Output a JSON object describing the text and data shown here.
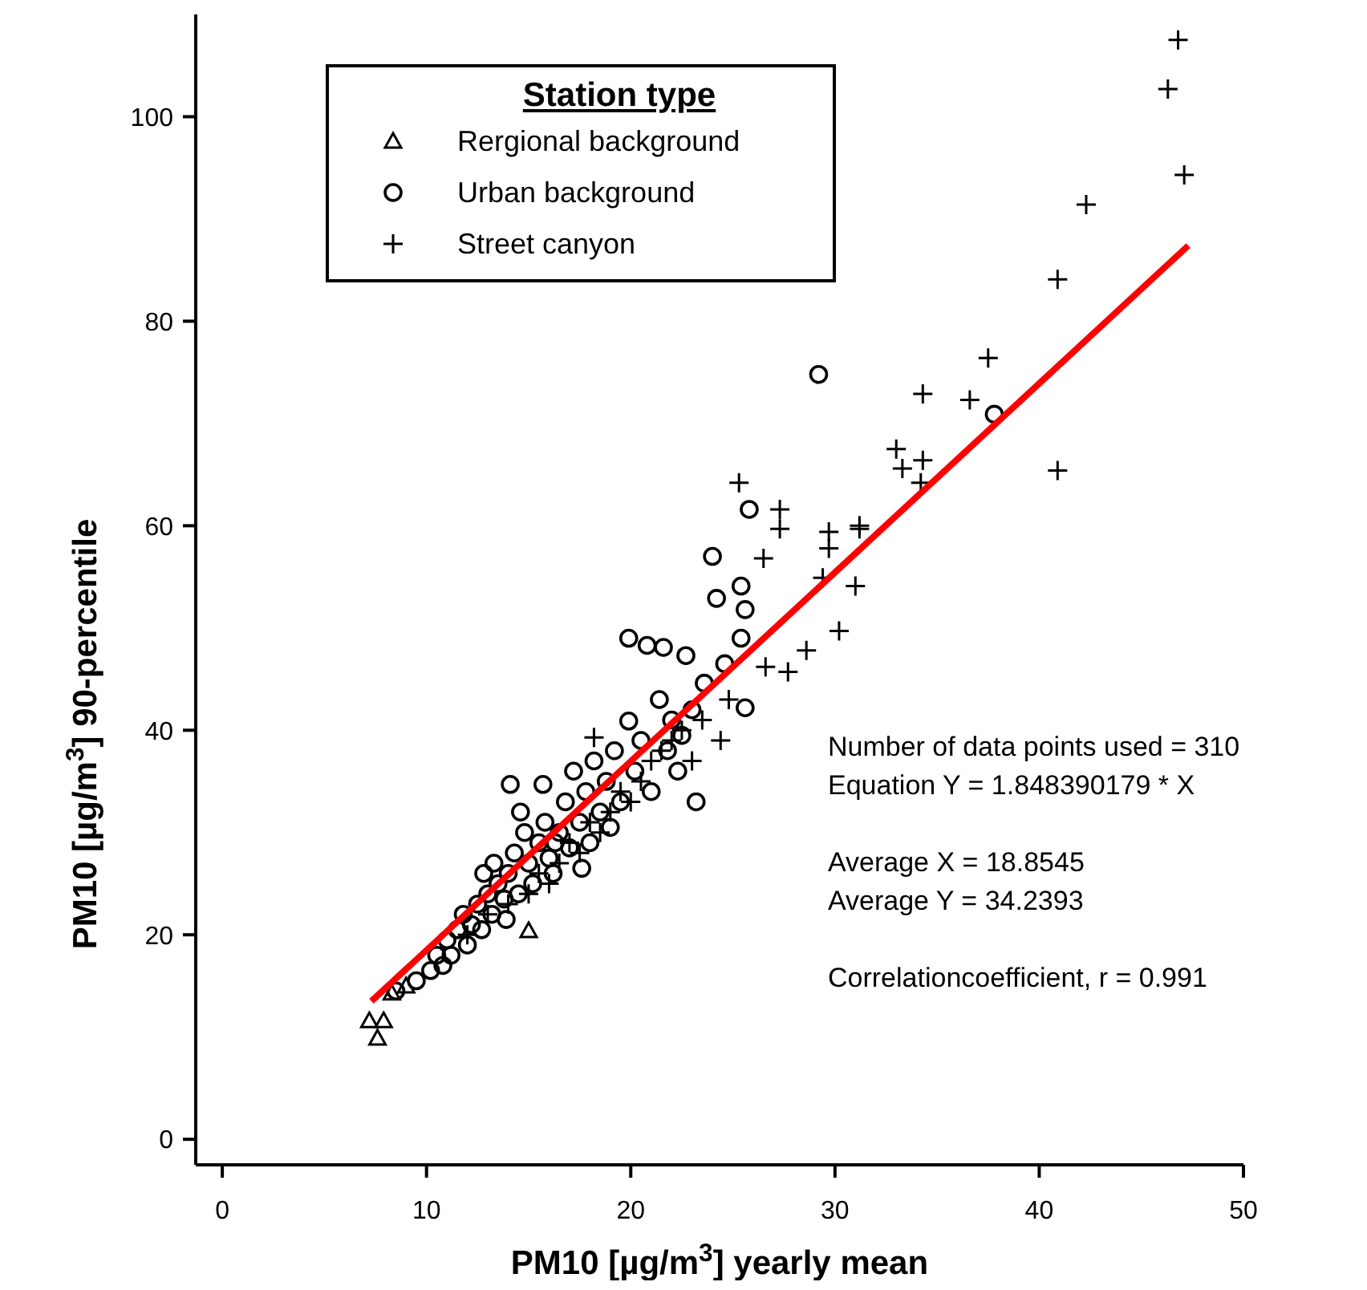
{
  "chart_data": {
    "type": "scatter",
    "xlabel": "PM10 [µg/m$^{3}$] yearly mean",
    "ylabel": "PM10 [µg/m$^{3}$] 90-percentile",
    "legend_title": "Station type",
    "legend": "top left",
    "xlim": [
      -1.3,
      50
    ],
    "ylim": [
      -2.5,
      110
    ],
    "xticks": [
      0,
      10,
      20,
      30,
      40,
      50
    ],
    "yticks": [
      0,
      20,
      40,
      60,
      80,
      100
    ],
    "series": [
      {
        "name": "Rergional background",
        "color": "#000000",
        "marker": "triangle",
        "x": [
          7.2,
          7.6,
          7.9,
          8.3,
          9,
          15
        ],
        "values": [
          11.6,
          9.9,
          11.6,
          14.3,
          15,
          20.4
        ]
      },
      {
        "name": "Urban background",
        "color": "#000000",
        "marker": "circle",
        "x": [
          10.2,
          10.5,
          10.8,
          11,
          11.2,
          11.5,
          11.8,
          12,
          12.2,
          12.5,
          12.7,
          13,
          13.2,
          13.5,
          13.3,
          13.8,
          14,
          14.1,
          14.3,
          14.5,
          14.8,
          15,
          15.2,
          15.5,
          15.7,
          15.8,
          16,
          16.2,
          16.5,
          16.8,
          17,
          17.2,
          17.5,
          17.8,
          18,
          18.2,
          18.5,
          18.8,
          19,
          19.2,
          19.5,
          19.9,
          19.9,
          20.2,
          20.5,
          20.8,
          21,
          21.4,
          21.6,
          21.8,
          22,
          22.3,
          22.7,
          22.5,
          23,
          23.2,
          23.6,
          24,
          24.2,
          24.6,
          25.4,
          25.6,
          25.4,
          25.6,
          25.8,
          29.2,
          37.8,
          8.5,
          9.5,
          12.8,
          14.6,
          16.3,
          13.9,
          17.6
        ],
        "values": [
          16.5,
          18,
          17,
          19.5,
          18,
          20.5,
          22,
          19,
          21,
          23,
          20.5,
          24,
          22,
          25,
          27,
          23.5,
          26,
          34.7,
          28,
          24,
          30,
          27,
          25,
          29,
          34.7,
          31,
          27.5,
          26,
          30,
          33,
          28.5,
          36,
          31,
          34,
          29,
          37,
          32,
          35,
          30.5,
          38,
          33,
          40.9,
          49,
          36,
          39,
          48.3,
          34,
          43,
          48.1,
          38,
          41,
          36,
          47.3,
          39.5,
          42,
          33,
          44.6,
          57,
          52.9,
          46.5,
          54.1,
          51.8,
          49,
          42.2,
          61.6,
          74.8,
          70.9,
          14.5,
          15.5,
          26,
          32,
          29,
          21.5,
          26.5
        ]
      },
      {
        "name": "Street canyon",
        "color": "#000000",
        "marker": "cross",
        "x": [
          12,
          13,
          14,
          15,
          15.5,
          16,
          16.5,
          17,
          17.5,
          18,
          18.2,
          18.5,
          19,
          19.5,
          20,
          20.5,
          21,
          21.5,
          22,
          22.5,
          23,
          23.5,
          24.4,
          24.8,
          25.3,
          26.5,
          26.6,
          27.3,
          27.3,
          27.7,
          28.6,
          29.4,
          29.7,
          29.7,
          30.2,
          31,
          31.2,
          31.2,
          33,
          33.3,
          34.2,
          34.3,
          34.3,
          36.6,
          37.5,
          40.9,
          40.9,
          42.3,
          46.3,
          46.8,
          47.1
        ],
        "values": [
          20,
          22,
          23,
          24,
          26,
          25,
          27,
          29,
          28,
          31,
          39.3,
          30,
          32,
          34,
          33,
          35,
          37,
          38,
          39,
          40,
          37,
          41,
          39,
          43,
          64.2,
          56.8,
          46.2,
          59.7,
          61.6,
          45.7,
          47.8,
          54.9,
          59.4,
          57.8,
          49.7,
          54.1,
          59.7,
          60,
          67.5,
          65.6,
          64.2,
          66.4,
          72.9,
          72.3,
          76.4,
          65.4,
          84.1,
          91.4,
          102.7,
          107.5,
          94.3
        ]
      },
      {
        "type": "line",
        "color": "#ff0000",
        "x": [
          7.3,
          47.3
        ],
        "values": [
          13.5,
          87.4
        ]
      }
    ],
    "annotations": [
      "Number of data points used = 310",
      "Equation Y = 1.848390179 * X",
      "Average X = 18.8545",
      "Average Y = 34.2393",
      "Correlationcoefficient, r = 0.991"
    ]
  }
}
